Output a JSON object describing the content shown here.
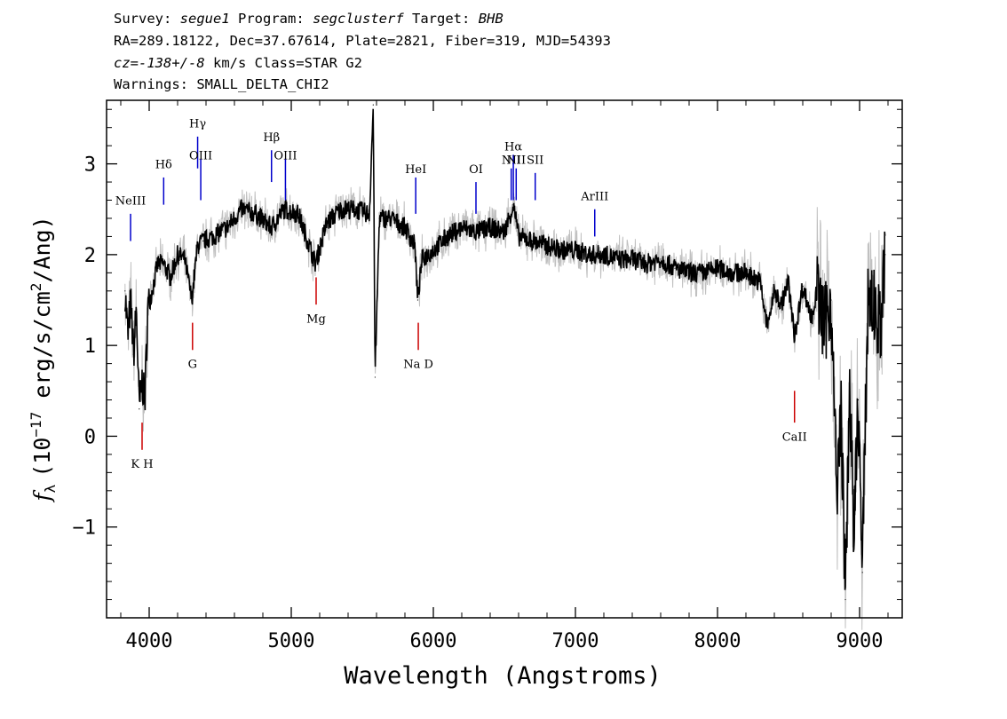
{
  "header": {
    "survey_label": "Survey:",
    "survey": "segue1",
    "program_label": "Program:",
    "program": "segclusterf",
    "target_label": "Target:",
    "target": "BHB",
    "line2": "RA=289.18122, Dec=37.67614, Plate=2821, Fiber=319, MJD=54393",
    "cz": "cz=-138+/-8",
    "cz_rest": " km/s Class=STAR G2",
    "line4": "Warnings: SMALL_DELTA_CHI2"
  },
  "chart_data": {
    "type": "line",
    "xlabel": "Wavelength (Angstroms)",
    "ylabel_prefix": "f",
    "ylabel_sub": "λ",
    "ylabel_rest": "(10",
    "ylabel_exp": "−17",
    "ylabel_units": " erg/s/cm",
    "ylabel_sq": "2",
    "ylabel_end": "/Ang)",
    "xlim": [
      3700,
      9300
    ],
    "ylim": [
      -2.0,
      3.7
    ],
    "xticks": [
      4000,
      5000,
      6000,
      7000,
      8000,
      9000
    ],
    "xtick_labels": [
      "4000",
      "5000",
      "6000",
      "7000",
      "8000",
      "9000"
    ],
    "yticks": [
      -1,
      0,
      1,
      2,
      3
    ],
    "ytick_labels": [
      "−1",
      "0",
      "1",
      "2",
      "3"
    ],
    "colors": {
      "spectrum": "#000000",
      "error": "#c0c0c0",
      "emission": "#0000cc",
      "absorption": "#cc0000"
    },
    "series": [
      {
        "x": [
          3830,
          3850,
          3870,
          3890,
          3910,
          3930,
          3950,
          3970,
          3990,
          4020,
          4060,
          4100,
          4150,
          4200,
          4250,
          4300,
          4340,
          4380,
          4450,
          4550,
          4650,
          4750,
          4860,
          4950,
          5050,
          5170,
          5250,
          5350,
          5450,
          5550,
          5577,
          5590,
          5620,
          5700,
          5800,
          5870,
          5890,
          5920,
          6000,
          6100,
          6200,
          6300,
          6400,
          6500,
          6563,
          6600,
          6700,
          6800,
          6900,
          7000,
          7100,
          7200,
          7300,
          7400,
          7500,
          7600,
          7700,
          7800,
          7900,
          8000,
          8100,
          8200,
          8300,
          8350,
          8400,
          8450,
          8498,
          8542,
          8600,
          8662,
          8700,
          8750,
          8800,
          8840,
          8870,
          8900,
          8930,
          8960,
          8990,
          9020,
          9060,
          9100,
          9150,
          9180
        ],
        "y": [
          1.6,
          1.1,
          1.5,
          0.9,
          1.4,
          0.3,
          0.6,
          0.4,
          1.4,
          1.6,
          1.9,
          1.9,
          1.75,
          2.0,
          1.95,
          1.5,
          2.1,
          2.15,
          2.2,
          2.3,
          2.5,
          2.45,
          2.3,
          2.5,
          2.45,
          1.9,
          2.35,
          2.5,
          2.5,
          2.45,
          3.65,
          0.65,
          2.4,
          2.4,
          2.3,
          2.1,
          1.5,
          1.95,
          2.05,
          2.2,
          2.3,
          2.25,
          2.3,
          2.25,
          2.55,
          2.2,
          2.15,
          2.1,
          2.05,
          2.05,
          2.0,
          2.0,
          1.95,
          1.95,
          1.9,
          1.95,
          1.85,
          1.8,
          1.8,
          1.85,
          1.8,
          1.8,
          1.7,
          1.2,
          1.6,
          1.45,
          1.7,
          1.1,
          1.65,
          1.3,
          1.6,
          1.2,
          1.5,
          -0.7,
          0.3,
          -1.8,
          0.6,
          -1.2,
          0.4,
          -1.5,
          1.6,
          1.4,
          1.2,
          2.0
        ]
      }
    ],
    "line_markers": [
      {
        "label": "NeIII",
        "x": 3869,
        "kind": "emission"
      },
      {
        "label": "Hδ",
        "x": 4102,
        "kind": "emission"
      },
      {
        "label": "Hγ",
        "x": 4341,
        "kind": "emission"
      },
      {
        "label": "OIII",
        "x": 4363,
        "kind": "emission"
      },
      {
        "label": "Hβ",
        "x": 4861,
        "kind": "emission"
      },
      {
        "label": "OIII",
        "x": 4959,
        "kind": "emission"
      },
      {
        "label": "HeI",
        "x": 5876,
        "kind": "emission"
      },
      {
        "label": "OI",
        "x": 6300,
        "kind": "emission"
      },
      {
        "label": "NII",
        "x": 6548,
        "kind": "emission"
      },
      {
        "label": "Hα",
        "x": 6563,
        "kind": "emission"
      },
      {
        "label": "NII",
        "x": 6583,
        "kind": "emission"
      },
      {
        "label": "SII",
        "x": 6717,
        "kind": "emission"
      },
      {
        "label": "ArIII",
        "x": 7136,
        "kind": "emission"
      },
      {
        "label": "K H",
        "x": 3950,
        "kind": "absorption"
      },
      {
        "label": "G",
        "x": 4305,
        "kind": "absorption"
      },
      {
        "label": "Mg",
        "x": 5175,
        "kind": "absorption"
      },
      {
        "label": "Na  D",
        "x": 5894,
        "kind": "absorption"
      },
      {
        "label": "CaII",
        "x": 8542,
        "kind": "absorption"
      }
    ]
  }
}
